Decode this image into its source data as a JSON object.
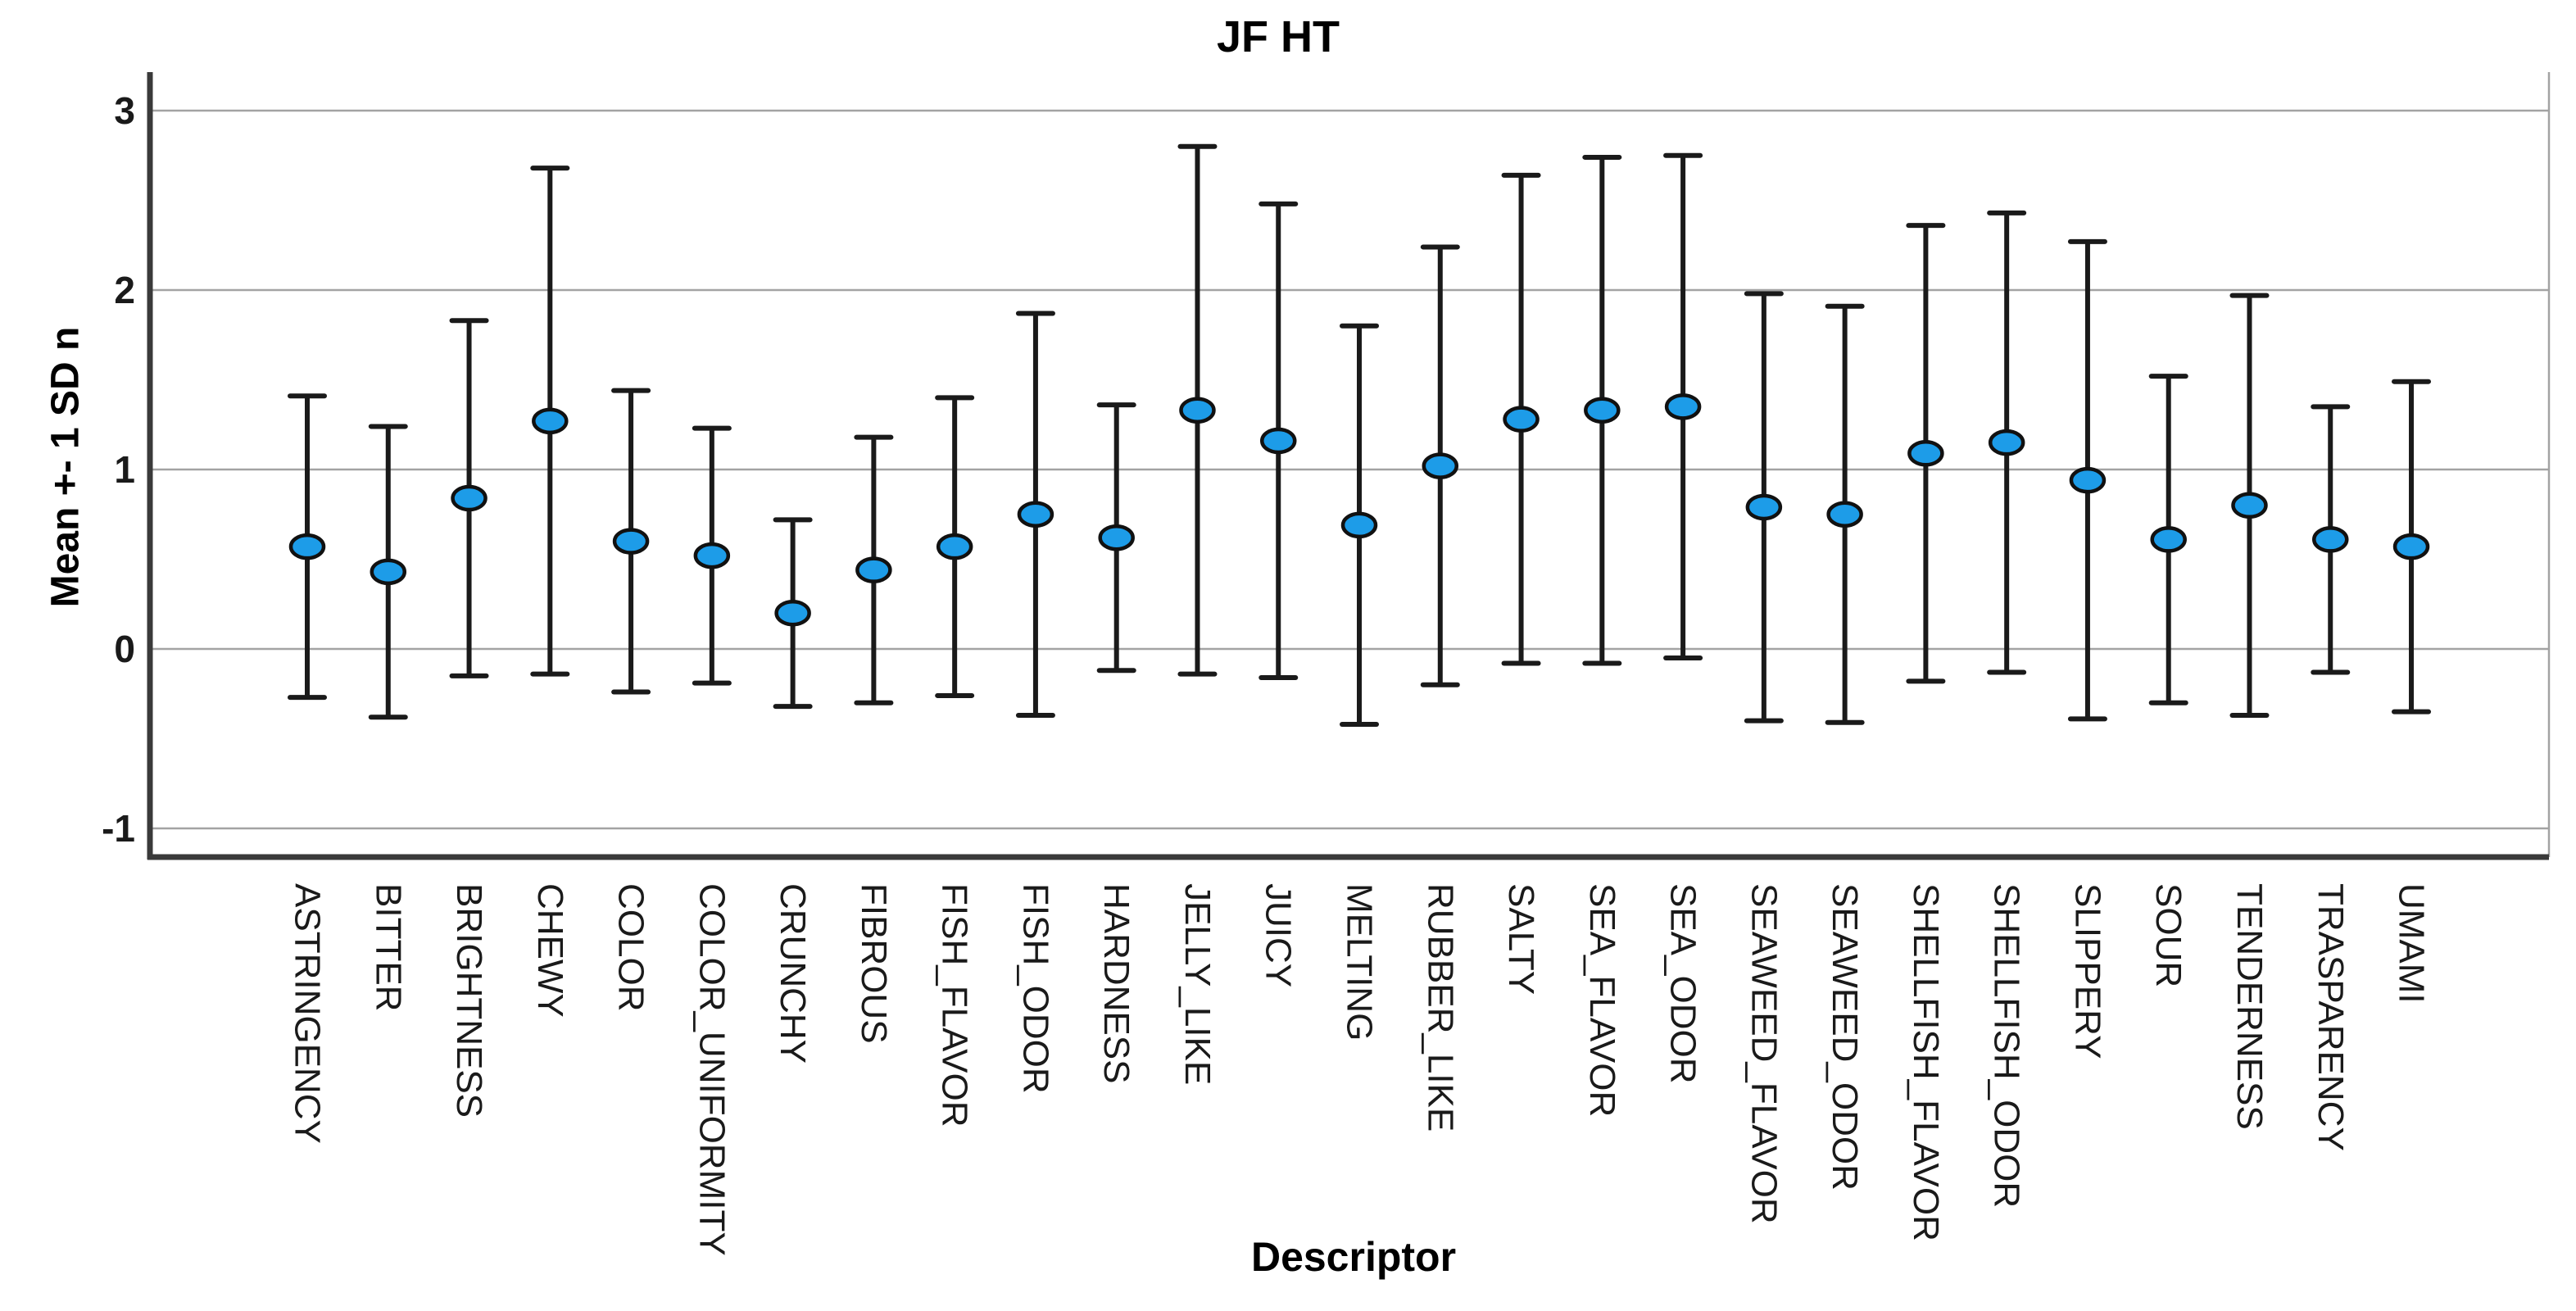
{
  "chart": {
    "title": "JF HT",
    "x_axis_title": "Descriptor",
    "y_axis_title": "Mean +- 1 SD n"
  },
  "chart_data": {
    "type": "errorbar",
    "title": "JF HT",
    "xlabel": "Descriptor",
    "ylabel": "Mean +- 1 SD n",
    "ylim": [
      -1.16,
      3.21
    ],
    "yticks": [
      3,
      2,
      1,
      0,
      -1
    ],
    "grid": true,
    "legend": "none",
    "marker_shape": "ellipse",
    "colors": {
      "marker_fill": "#1d9ce8",
      "marker_outline": "#111111",
      "error_bar": "#1a1a1a",
      "gridline": "#a3a3a3",
      "axis_spine": "#3a3a3a",
      "frame": "#a3a3a3",
      "background": "#ffffff"
    },
    "categories": [
      "ASTRINGENCY",
      "BITTER",
      "BRIGHTNESS",
      "CHEWY",
      "COLOR",
      "COLOR_UNIFORMITY",
      "CRUNCHY",
      "FIBROUS",
      "FISH_FLAVOR",
      "FISH_ODOR",
      "HARDNESS",
      "JELLY_LIKE",
      "JUICY",
      "MELTING",
      "RUBBER_LIKE",
      "SALTY",
      "SEA_FLAVOR",
      "SEA_ODOR",
      "SEAWEED_FLAVOR",
      "SEAWEED_ODOR",
      "SHELLFISH_FLAVOR",
      "SHELLFISH_ODOR",
      "SLIPPERY",
      "SOUR",
      "TENDERNESS",
      "TRASPARENCY",
      "UMAMI"
    ],
    "series": [
      {
        "name": "Mean +- 1 SD",
        "means": [
          0.57,
          0.43,
          0.84,
          1.27,
          0.6,
          0.52,
          0.2,
          0.44,
          0.57,
          0.75,
          0.62,
          1.33,
          1.16,
          0.69,
          1.02,
          1.28,
          1.33,
          1.35,
          0.79,
          0.75,
          1.09,
          1.15,
          0.94,
          0.61,
          0.8,
          0.61,
          0.57
        ],
        "lowers": [
          -0.27,
          -0.38,
          -0.15,
          -0.14,
          -0.24,
          -0.19,
          -0.32,
          -0.3,
          -0.26,
          -0.37,
          -0.12,
          -0.14,
          -0.16,
          -0.42,
          -0.2,
          -0.08,
          -0.08,
          -0.05,
          -0.4,
          -0.41,
          -0.18,
          -0.13,
          -0.39,
          -0.3,
          -0.37,
          -0.13,
          -0.35
        ],
        "uppers": [
          1.41,
          1.24,
          1.83,
          2.68,
          1.44,
          1.23,
          0.72,
          1.18,
          1.4,
          1.87,
          1.36,
          2.8,
          2.48,
          1.8,
          2.24,
          2.64,
          2.74,
          2.75,
          1.98,
          1.91,
          2.36,
          2.43,
          2.27,
          1.52,
          1.97,
          1.35,
          1.49
        ]
      }
    ]
  }
}
